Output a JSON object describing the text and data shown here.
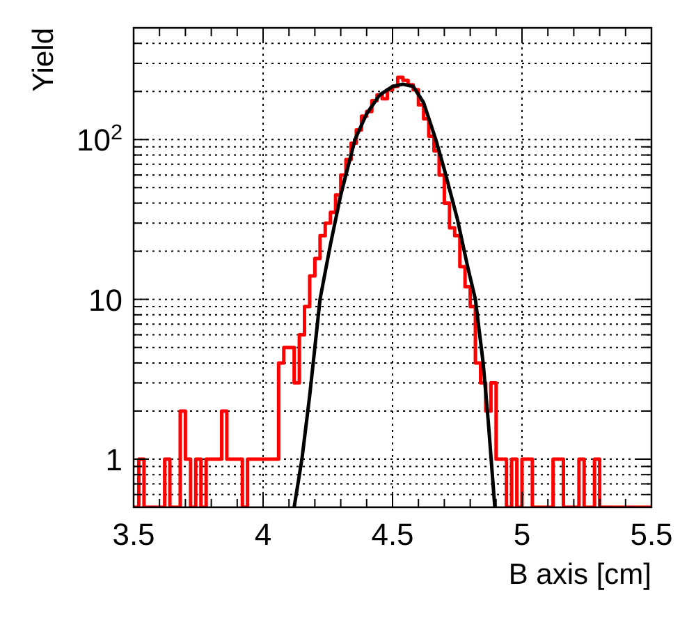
{
  "chart_data": {
    "type": "histogram",
    "xlabel": "B axis [cm]",
    "ylabel": "Yield",
    "log": "y",
    "grid": true,
    "xlim": [
      3.5,
      5.5
    ],
    "xticks": [
      3.5,
      {
        "value": 3.6,
        "label": null
      },
      {
        "value": 3.7,
        "label": null
      },
      {
        "value": 3.8,
        "label": null
      },
      {
        "value": 3.9,
        "label": null
      },
      4,
      {
        "value": 4.1,
        "label": null
      },
      {
        "value": 4.2,
        "label": null
      },
      {
        "value": 4.3,
        "label": null
      },
      {
        "value": 4.4,
        "label": null
      },
      4.5,
      {
        "value": 4.6,
        "label": null
      },
      {
        "value": 4.7,
        "label": null
      },
      {
        "value": 4.8,
        "label": null
      },
      {
        "value": 4.9,
        "label": null
      },
      5,
      {
        "value": 5.1,
        "label": null
      },
      {
        "value": 5.2,
        "label": null
      },
      {
        "value": 5.3,
        "label": null
      },
      {
        "value": 5.4,
        "label": null
      },
      5.5
    ],
    "ylim": [
      0.5,
      500
    ],
    "yticks": [
      {
        "value": 0.5,
        "label": null
      },
      {
        "value": 0.6,
        "label": null
      },
      {
        "value": 0.7,
        "label": null
      },
      {
        "value": 0.8,
        "label": null
      },
      {
        "value": 0.9,
        "label": null
      },
      1,
      {
        "value": 2,
        "label": null
      },
      {
        "value": 3,
        "label": null
      },
      {
        "value": 4,
        "label": null
      },
      {
        "value": 5,
        "label": null
      },
      {
        "value": 6,
        "label": null
      },
      {
        "value": 7,
        "label": null
      },
      {
        "value": 8,
        "label": null
      },
      {
        "value": 9,
        "label": null
      },
      10,
      {
        "value": 20,
        "label": null
      },
      {
        "value": 30,
        "label": null
      },
      {
        "value": 40,
        "label": null
      },
      {
        "value": 50,
        "label": null
      },
      {
        "value": 60,
        "label": null
      },
      {
        "value": 70,
        "label": null
      },
      {
        "value": 80,
        "label": null
      },
      {
        "value": 90,
        "label": null
      },
      {
        "value": 100,
        "label": "10$^{2}$"
      },
      {
        "value": 200,
        "label": null
      },
      {
        "value": 300,
        "label": null
      },
      {
        "value": 400,
        "label": null
      },
      {
        "value": 500,
        "label": null
      }
    ],
    "bins": [
      3.5,
      3.52,
      3.54,
      3.56,
      3.58,
      3.6,
      3.62,
      3.64,
      3.66,
      3.68,
      3.7,
      3.72,
      3.74,
      3.76,
      3.78,
      3.8,
      3.82,
      3.84,
      3.86,
      3.88,
      3.9,
      3.92,
      3.94,
      3.96,
      3.98,
      4.0,
      4.02,
      4.04,
      4.06,
      4.08,
      4.1,
      4.12,
      4.14,
      4.16,
      4.18,
      4.2,
      4.22,
      4.24,
      4.26,
      4.28,
      4.3,
      4.32,
      4.34,
      4.36,
      4.38,
      4.4,
      4.42,
      4.44,
      4.46,
      4.48,
      4.5,
      4.52,
      4.54,
      4.56,
      4.58,
      4.6,
      4.62,
      4.64,
      4.66,
      4.68,
      4.7,
      4.72,
      4.74,
      4.76,
      4.78,
      4.8,
      4.82,
      4.84,
      4.86,
      4.88,
      4.9,
      4.92,
      4.94,
      4.96,
      4.98,
      5.0,
      5.02,
      5.04,
      5.06,
      5.08,
      5.1,
      5.12,
      5.14,
      5.16,
      5.18,
      5.2,
      5.22,
      5.24,
      5.26,
      5.28,
      5.3,
      5.32,
      5.34,
      5.36,
      5.38,
      5.4,
      5.42,
      5.44,
      5.46,
      5.48,
      5.5
    ],
    "series": [
      {
        "color": "#ff0000",
        "values": [
          null,
          1,
          null,
          null,
          null,
          null,
          1,
          null,
          null,
          2,
          1,
          null,
          1,
          null,
          1,
          1,
          1,
          2,
          1,
          1,
          1,
          null,
          1,
          1,
          1,
          1,
          1,
          1,
          4,
          5,
          5,
          3,
          6,
          9,
          14,
          18,
          25,
          30,
          35,
          45,
          60,
          75,
          95,
          115,
          140,
          150,
          175,
          190,
          180,
          205,
          215,
          245,
          235,
          220,
          205,
          165,
          135,
          105,
          85,
          60,
          40,
          28,
          25,
          16,
          12,
          9,
          4,
          3,
          2,
          3,
          1,
          1,
          null,
          1,
          null,
          1,
          1,
          null,
          null,
          null,
          null,
          1,
          1,
          null,
          null,
          null,
          1,
          null,
          null,
          1,
          null,
          null,
          null,
          null,
          null,
          null,
          null,
          null,
          null,
          null
        ]
      },
      {
        "type": "line",
        "color": "#000000",
        "x": [
          4.12,
          4.15,
          4.18,
          4.22,
          4.26,
          4.3,
          4.355,
          4.4,
          4.45,
          4.5,
          4.54,
          4.58,
          4.62,
          4.667,
          4.7,
          4.75,
          4.79,
          4.82,
          4.85,
          4.87,
          4.895
        ],
        "values": [
          0.5,
          1,
          2.5,
          10,
          22,
          45,
          100,
          145,
          190,
          215,
          222,
          215,
          170,
          100,
          65,
          32,
          16,
          10,
          4,
          1.7,
          0.5
        ]
      }
    ]
  }
}
